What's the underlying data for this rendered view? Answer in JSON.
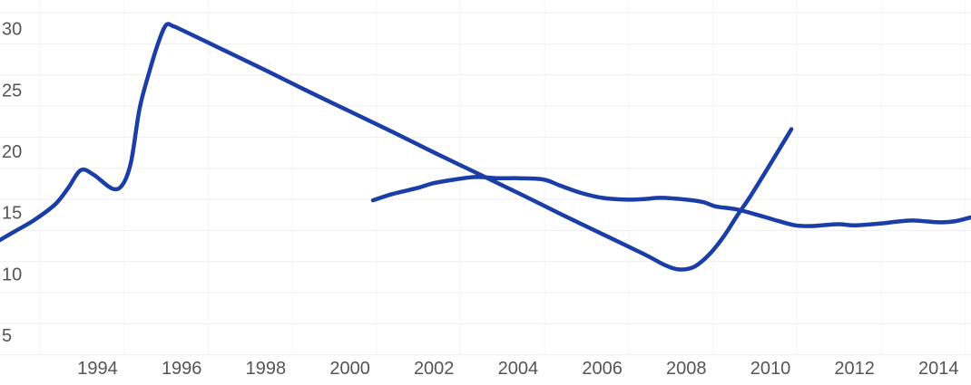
{
  "chart_data": {
    "type": "line",
    "title": "",
    "xlabel": "",
    "ylabel": "",
    "legend": false,
    "grid": true,
    "x_ticks": [
      "1994",
      "1996",
      "1998",
      "2000",
      "2002",
      "2004",
      "2006",
      "2008",
      "2010",
      "2012",
      "2014"
    ],
    "x_tick_years": [
      1994,
      1996,
      1998,
      2000,
      2002,
      2004,
      2006,
      2008,
      2010,
      2012,
      2014
    ],
    "y_ticks": [
      "5",
      "10",
      "15",
      "20",
      "25",
      "30"
    ],
    "y_tick_values": [
      5,
      10,
      15,
      20,
      25,
      30
    ],
    "xlim": [
      1991.68,
      2014.77
    ],
    "ylim": [
      0.93,
      32.34
    ],
    "line_color": "#1b3da8",
    "tick_label_color": "#555555",
    "h_gridline_color": "#efefef",
    "v_gridline_color": "#f5f5f5",
    "background_color": "#ffffff",
    "series": [
      {
        "name": "series-1",
        "points": [
          [
            1991.65,
            12.7
          ],
          [
            1992.0,
            13.4
          ],
          [
            1992.5,
            14.4
          ],
          [
            1993.0,
            15.7
          ],
          [
            1993.3,
            17.0
          ],
          [
            1993.6,
            18.45
          ],
          [
            1993.9,
            18.1
          ],
          [
            1994.35,
            16.95
          ],
          [
            1994.6,
            17.3
          ],
          [
            1994.8,
            19.2
          ],
          [
            1995.0,
            23.5
          ],
          [
            1995.25,
            26.7
          ],
          [
            1995.45,
            28.9
          ],
          [
            1995.63,
            30.3
          ],
          [
            1995.8,
            30.2
          ],
          [
            1996.0,
            29.9
          ],
          [
            1997.0,
            28.25
          ],
          [
            1998.0,
            26.6
          ],
          [
            1999.0,
            24.9
          ],
          [
            2000.0,
            23.25
          ],
          [
            2001.0,
            21.6
          ],
          [
            2002.0,
            19.9
          ],
          [
            2003.0,
            18.25
          ],
          [
            2004.0,
            16.6
          ],
          [
            2005.0,
            14.9
          ],
          [
            2006.0,
            13.25
          ],
          [
            2007.0,
            11.6
          ],
          [
            2007.5,
            10.7
          ],
          [
            2007.85,
            10.35
          ],
          [
            2008.2,
            10.6
          ],
          [
            2008.55,
            11.6
          ],
          [
            2008.9,
            13.1
          ],
          [
            2009.2,
            14.7
          ],
          [
            2009.5,
            16.2
          ],
          [
            2009.9,
            18.4
          ],
          [
            2010.2,
            20.1
          ],
          [
            2010.5,
            21.8
          ]
        ]
      },
      {
        "name": "series-2",
        "points": [
          [
            2000.55,
            16.0
          ],
          [
            2001.0,
            16.5
          ],
          [
            2001.6,
            17.0
          ],
          [
            2002.0,
            17.4
          ],
          [
            2002.5,
            17.7
          ],
          [
            2003.0,
            17.9
          ],
          [
            2003.5,
            17.8
          ],
          [
            2004.0,
            17.8
          ],
          [
            2004.6,
            17.7
          ],
          [
            2005.0,
            17.2
          ],
          [
            2005.5,
            16.6
          ],
          [
            2006.0,
            16.2
          ],
          [
            2006.6,
            16.05
          ],
          [
            2007.0,
            16.1
          ],
          [
            2007.4,
            16.2
          ],
          [
            2008.0,
            16.05
          ],
          [
            2008.4,
            15.85
          ],
          [
            2008.7,
            15.5
          ],
          [
            2009.2,
            15.25
          ],
          [
            2009.8,
            14.7
          ],
          [
            2010.2,
            14.3
          ],
          [
            2010.6,
            13.95
          ],
          [
            2011.0,
            13.9
          ],
          [
            2011.6,
            14.05
          ],
          [
            2012.0,
            13.95
          ],
          [
            2012.6,
            14.1
          ],
          [
            2013.0,
            14.25
          ],
          [
            2013.4,
            14.35
          ],
          [
            2014.0,
            14.2
          ],
          [
            2014.4,
            14.3
          ],
          [
            2014.76,
            14.6
          ]
        ]
      }
    ]
  }
}
